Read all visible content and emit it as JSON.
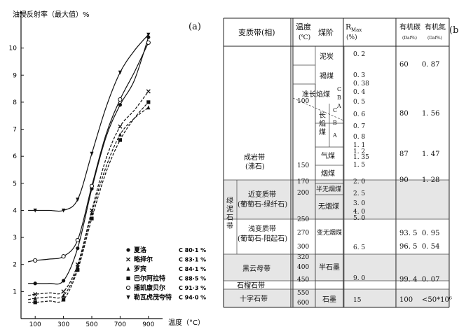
{
  "panel_a": {
    "label": "(a)",
    "y_axis_title": "油浸反射率（最大值）%",
    "x_axis_title": "温度（°C）",
    "chart_data": {
      "type": "line",
      "ylabel": "油浸反射率（最大值）%",
      "xlabel": "温度（°C）",
      "x_ticks": [
        100,
        300,
        500,
        700,
        900
      ],
      "y_ticks": [
        1,
        2,
        3,
        4,
        5,
        6,
        7,
        8,
        9,
        10
      ],
      "xlim": [
        0,
        1000
      ],
      "ylim": [
        0,
        11
      ],
      "series": [
        {
          "name": "夏洛",
          "code": "C 80·1 %",
          "marker": "circle-filled",
          "dash": "solid",
          "x": [
            50,
            100,
            200,
            300,
            400,
            500,
            600,
            700,
            800,
            900
          ],
          "y": [
            1.3,
            1.3,
            1.3,
            1.4,
            2.6,
            4.8,
            6.7,
            7.9,
            8.8,
            10.4
          ]
        },
        {
          "name": "略择尔",
          "code": "C 83·1 %",
          "marker": "x",
          "dash": "dashed",
          "x": [
            50,
            100,
            200,
            300,
            400,
            500,
            600,
            700,
            800,
            900
          ],
          "y": [
            0.85,
            0.9,
            0.95,
            1.0,
            2.0,
            4.0,
            5.9,
            7.1,
            7.7,
            8.4
          ]
        },
        {
          "name": "罗宾",
          "code": "C 84·1 %",
          "marker": "triangle-filled",
          "dash": "dashed",
          "x": [
            50,
            100,
            200,
            300,
            400,
            500,
            600,
            700,
            800,
            900
          ],
          "y": [
            0.7,
            0.75,
            0.8,
            0.85,
            1.9,
            3.9,
            5.6,
            6.8,
            7.4,
            7.8
          ]
        },
        {
          "name": "巴尔阿拉特",
          "code": "C 88·5 %",
          "marker": "square-filled",
          "dash": "dashed",
          "x": [
            50,
            100,
            200,
            300,
            400,
            500,
            600,
            700,
            800,
            900
          ],
          "y": [
            0.6,
            0.6,
            0.65,
            0.7,
            1.8,
            3.7,
            5.4,
            6.6,
            7.4,
            8.0
          ]
        },
        {
          "name": "播凯康贝尔",
          "code": "C 91·3 %",
          "marker": "circle-open",
          "dash": "solid",
          "x": [
            50,
            100,
            200,
            300,
            400,
            500,
            600,
            700,
            800,
            900
          ],
          "y": [
            2.1,
            2.15,
            2.2,
            2.3,
            2.9,
            4.9,
            6.8,
            8.1,
            9.1,
            10.2
          ]
        },
        {
          "name": "勒瓦虎茂夸特",
          "code": "C 94·0 %",
          "marker": "triangle-down-filled",
          "dash": "solid",
          "x": [
            50,
            100,
            200,
            300,
            400,
            500,
            600,
            700,
            800,
            900
          ],
          "y": [
            4.0,
            4.0,
            4.0,
            4.0,
            4.4,
            6.1,
            7.8,
            9.1,
            9.9,
            10.5
          ]
        }
      ]
    }
  },
  "panel_b": {
    "label": "(b)",
    "headers": {
      "zone": "变质带(相)",
      "temp": "温度",
      "temp_unit": "(℃)",
      "rank": "煤阶",
      "rmax": "R",
      "rmax_sub": "Max",
      "rmax_unit": "(%)",
      "org_c": "有机碳",
      "org_c_sub": "(Daf%)",
      "org_n": "有机氮",
      "org_n_sub": "(Daf%)"
    },
    "zones": {
      "diagenetic": "成岩带",
      "diagenetic_sub": "(沸石)",
      "greenschist": "绿泥石带",
      "greenschist_chars": [
        "绿",
        "泥",
        "石",
        "带"
      ],
      "near_meta": "近变质带",
      "near_meta_sub": "(葡萄石-绿纤石)",
      "shallow_meta": "浅变质带",
      "shallow_meta_sub": "(葡萄石-阳起石)",
      "biotite": "黑云母带",
      "garnet": "石榴石带",
      "staurolite": "十字石带"
    },
    "temps": [
      "100",
      "150",
      "170",
      "200",
      "250",
      "270",
      "300",
      "320",
      "400",
      "450",
      "550",
      "600"
    ],
    "ranks": {
      "peat": "泥炭",
      "lignite": "褐煤",
      "subbit": "准长焰煤",
      "longflame": [
        "长",
        "焰",
        "煤"
      ],
      "c": "C",
      "b": "B",
      "a": "A",
      "gas": "气煤",
      "smoke": "烟煤",
      "semi_anth": "半无烟煤",
      "anth": "无烟煤",
      "meta_anth": "变无烟煤",
      "semi_graph": "半石墨",
      "graphite": "石墨"
    },
    "rmax_values": [
      "0. 2",
      "0. 3",
      "0. 38",
      "0. 4",
      "0. 5",
      "0. 6",
      "0. 7",
      "0. 8",
      "1. 1",
      "1. 2",
      "1. 35",
      "1. 5",
      "2. 0",
      "2. 5",
      "3. 0",
      "4. 0",
      "5. 0",
      "6. 5",
      "9. 0",
      "15"
    ],
    "organic_rows": [
      {
        "c": "60",
        "n": "0. 87"
      },
      {
        "c": "80",
        "n": "1. 56"
      },
      {
        "c": "87",
        "n": "1. 47"
      },
      {
        "c": "90",
        "n": "1. 28"
      },
      {
        "c": "93. 5",
        "n": "0. 95"
      },
      {
        "c": "96. 5",
        "n": "0. 54"
      },
      {
        "c": "99. 4",
        "n": "0. 07"
      },
      {
        "c": "100",
        "n": "<50*10⁶"
      }
    ]
  }
}
